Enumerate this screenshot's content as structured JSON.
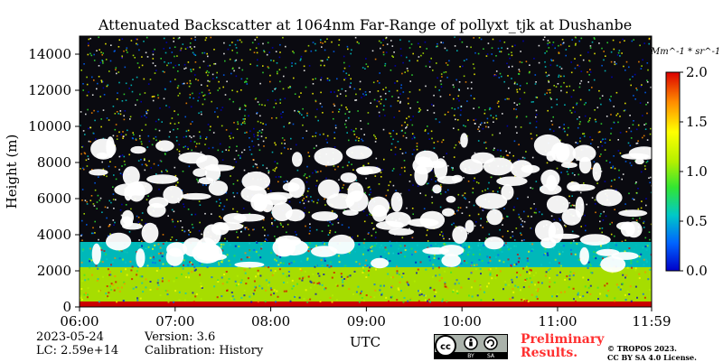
{
  "chart_data": {
    "type": "heatmap",
    "title": "Attenuated Backscatter at 1064nm Far-Range of pollyxt_tjk at Dushanbe",
    "xlabel": "UTC",
    "ylabel": "Height (m)",
    "x_range": [
      "06:00",
      "11:59"
    ],
    "y_range": [
      0,
      15000
    ],
    "x_ticks": [
      "06:00",
      "07:00",
      "08:00",
      "09:00",
      "10:00",
      "11:00",
      "11:59"
    ],
    "y_ticks": [
      "0",
      "2000",
      "4000",
      "6000",
      "8000",
      "10000",
      "12000",
      "14000"
    ],
    "colorbar": {
      "unit": "Mm^-1 * sr^-1",
      "range": [
        0.0,
        2.0
      ],
      "ticks": [
        "0.0",
        "0.5",
        "1.0",
        "1.5",
        "2.0"
      ],
      "colors": [
        "#0000c8",
        "#0064ff",
        "#00c8c8",
        "#32e632",
        "#b4f000",
        "#ffff00",
        "#ff8c00",
        "#dc0000"
      ]
    },
    "layers": [
      {
        "feature": "surface layer",
        "height_range_m": [
          0,
          300
        ],
        "value": 2.0
      },
      {
        "feature": "boundary layer",
        "height_range_m": [
          300,
          2200
        ],
        "value": 1.2
      },
      {
        "feature": "aerosol layer",
        "height_range_m": [
          2200,
          3600
        ],
        "value": 0.6
      },
      {
        "feature": "clouds",
        "time_range": [
          "06:10",
          "11:55"
        ],
        "height_range_m": [
          2300,
          9300
        ],
        "value": 2.0
      }
    ]
  },
  "footer": {
    "date": "2023-05-24",
    "lc": "LC: 2.59e+14",
    "version": "Version: 3.6",
    "calibration": "Calibration: History",
    "preliminary_line1": "Preliminary",
    "preliminary_line2": "Results.",
    "copyright_line1": "© TROPOS 2023.",
    "copyright_line2": "CC BY SA 4.0 License.",
    "cc_badge": [
      "cc",
      "BY",
      "SA"
    ]
  }
}
